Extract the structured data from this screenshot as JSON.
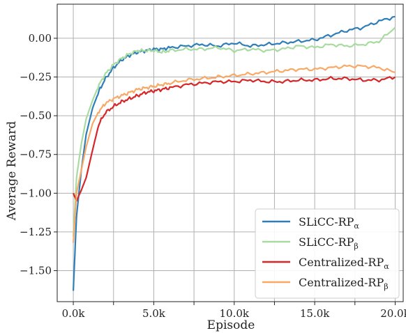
{
  "chart_data": {
    "type": "line",
    "title": "",
    "xlabel": "Episode",
    "ylabel": "Average Reward",
    "xlim": [
      -1000,
      20500
    ],
    "ylim": [
      -1.7,
      0.22
    ],
    "grid": true,
    "legend_position": "bottom-right",
    "x_ticks": [
      0,
      2500,
      5000,
      7500,
      10000,
      12500,
      15000,
      17500,
      20000
    ],
    "x_tick_labels": [
      "0.0k",
      "",
      "5.0k",
      "",
      "10.0k",
      "",
      "15.0k",
      "",
      "20.0k"
    ],
    "y_ticks": [
      -1.5,
      -1.25,
      -1.0,
      -0.75,
      -0.5,
      -0.25,
      0.0
    ],
    "y_tick_labels": [
      "−1.50",
      "−1.25",
      "−1.00",
      "−0.75",
      "−0.50",
      "−0.25",
      "0.00"
    ],
    "x": [
      0,
      200,
      500,
      800,
      1200,
      1600,
      2000,
      2500,
      3000,
      3500,
      4000,
      4500,
      5000,
      5500,
      6000,
      7000,
      8000,
      9000,
      10000,
      11000,
      12000,
      13000,
      14000,
      15000,
      16000,
      17000,
      18000,
      19000,
      20000
    ],
    "series": [
      {
        "name": "SLiCC-RP",
        "subscript": "α",
        "color": "#2f7eb8",
        "values": [
          -1.63,
          -1.15,
          -0.85,
          -0.62,
          -0.45,
          -0.34,
          -0.26,
          -0.19,
          -0.14,
          -0.11,
          -0.09,
          -0.08,
          -0.07,
          -0.07,
          -0.06,
          -0.05,
          -0.04,
          -0.05,
          -0.03,
          -0.05,
          -0.04,
          -0.03,
          -0.02,
          -0.01,
          0.02,
          0.05,
          0.07,
          0.11,
          0.14
        ]
      },
      {
        "name": "SLiCC-RP",
        "subscript": "β",
        "color": "#a8dba0",
        "values": [
          -1.28,
          -0.9,
          -0.68,
          -0.52,
          -0.4,
          -0.3,
          -0.23,
          -0.17,
          -0.13,
          -0.1,
          -0.08,
          -0.08,
          -0.08,
          -0.09,
          -0.08,
          -0.07,
          -0.07,
          -0.06,
          -0.08,
          -0.07,
          -0.08,
          -0.07,
          -0.05,
          -0.06,
          -0.04,
          -0.05,
          -0.04,
          -0.02,
          0.07
        ]
      },
      {
        "name": "Centralized-RP",
        "subscript": "α",
        "color": "#d62728",
        "values": [
          -1.0,
          -1.05,
          -0.98,
          -0.9,
          -0.72,
          -0.55,
          -0.48,
          -0.44,
          -0.41,
          -0.39,
          -0.37,
          -0.35,
          -0.34,
          -0.33,
          -0.32,
          -0.3,
          -0.29,
          -0.28,
          -0.28,
          -0.27,
          -0.28,
          -0.28,
          -0.27,
          -0.27,
          -0.26,
          -0.26,
          -0.27,
          -0.27,
          -0.25
        ]
      },
      {
        "name": "Centralized-RP",
        "subscript": "β",
        "color": "#f8a966",
        "values": [
          -1.32,
          -1.0,
          -0.85,
          -0.7,
          -0.55,
          -0.47,
          -0.42,
          -0.39,
          -0.37,
          -0.35,
          -0.33,
          -0.32,
          -0.31,
          -0.3,
          -0.29,
          -0.27,
          -0.26,
          -0.25,
          -0.24,
          -0.23,
          -0.22,
          -0.21,
          -0.2,
          -0.2,
          -0.19,
          -0.18,
          -0.18,
          -0.19,
          -0.22
        ]
      }
    ]
  }
}
